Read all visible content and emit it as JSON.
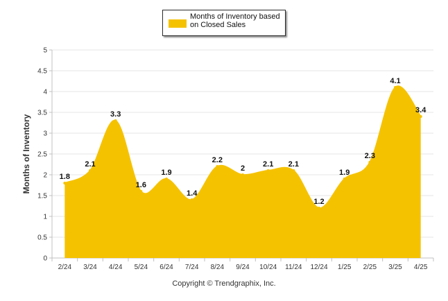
{
  "chart_data": {
    "type": "area",
    "categories": [
      "2/24",
      "3/24",
      "4/24",
      "5/24",
      "6/24",
      "7/24",
      "8/24",
      "9/24",
      "10/24",
      "11/24",
      "12/24",
      "1/25",
      "2/25",
      "3/25",
      "4/25"
    ],
    "series": [
      {
        "name": "Months of Inventory based on Closed Sales",
        "values": [
          1.8,
          2.1,
          3.3,
          1.6,
          1.9,
          1.4,
          2.2,
          2,
          2.1,
          2.1,
          1.2,
          1.9,
          2.3,
          4.1,
          3.4
        ],
        "data_labels": [
          "1.8",
          "2.1",
          "3.3",
          "1.6",
          "1.9",
          "1.4",
          "2.2",
          "2",
          "2.1",
          "2.1",
          "1.2",
          "1.9",
          "2.3",
          "4.1",
          "3.4"
        ],
        "color": "#f5c200"
      }
    ],
    "title": "",
    "xlabel": "",
    "ylabel": "Months of Inventory",
    "ylim": [
      0,
      5
    ],
    "yticks": [
      "0",
      "0.5",
      "1",
      "1.5",
      "2",
      "2.5",
      "3",
      "3.5",
      "4",
      "4.5",
      "5"
    ],
    "grid": true,
    "legend": "top-center"
  },
  "legend_label": "Months of Inventory based on Closed Sales",
  "copyright": "Copyright © Trendgraphix, Inc."
}
